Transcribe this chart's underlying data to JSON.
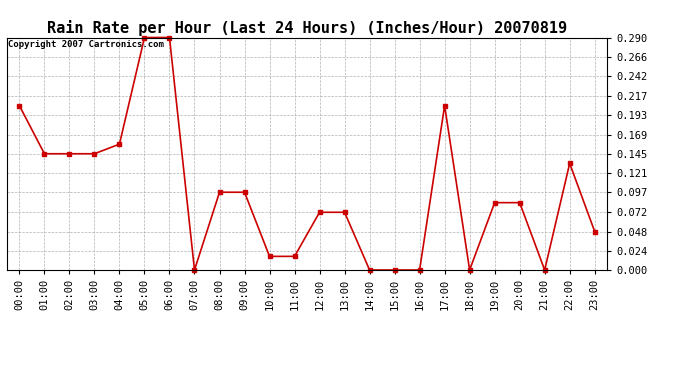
{
  "title": "Rain Rate per Hour (Last 24 Hours) (Inches/Hour) 20070819",
  "copyright_text": "Copyright 2007 Cartronics.com",
  "x_labels": [
    "00:00",
    "01:00",
    "02:00",
    "03:00",
    "04:00",
    "05:00",
    "06:00",
    "07:00",
    "08:00",
    "09:00",
    "10:00",
    "11:00",
    "12:00",
    "13:00",
    "14:00",
    "15:00",
    "16:00",
    "17:00",
    "18:00",
    "19:00",
    "20:00",
    "21:00",
    "22:00",
    "23:00"
  ],
  "y_values": [
    0.205,
    0.145,
    0.145,
    0.145,
    0.157,
    0.29,
    0.29,
    0.0,
    0.097,
    0.097,
    0.017,
    0.017,
    0.072,
    0.072,
    0.0,
    0.0,
    0.0,
    0.205,
    0.0,
    0.084,
    0.084,
    0.0,
    0.133,
    0.048
  ],
  "y_ticks": [
    0.0,
    0.024,
    0.048,
    0.072,
    0.097,
    0.121,
    0.145,
    0.169,
    0.193,
    0.217,
    0.242,
    0.266,
    0.29
  ],
  "line_color": "#cc0000",
  "marker_color": "#cc0000",
  "bg_color": "#ffffff",
  "grid_color": "#aaaaaa",
  "title_fontsize": 11,
  "copyright_fontsize": 6.5,
  "tick_fontsize": 7.5,
  "ylim_min": 0.0,
  "ylim_max": 0.29,
  "marker": "s",
  "marker_size": 2.5,
  "line_width": 1.2
}
